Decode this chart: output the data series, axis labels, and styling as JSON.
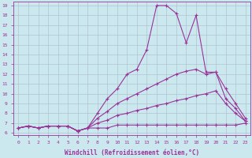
{
  "bg_color": "#cbe8ee",
  "line_color": "#993399",
  "grid_color": "#aabbcc",
  "xlabel": "Windchill (Refroidissement éolien,°C)",
  "xlim_min": -0.5,
  "xlim_max": 23.5,
  "ylim_min": 5.8,
  "ylim_max": 19.4,
  "xticks": [
    0,
    1,
    2,
    3,
    4,
    5,
    6,
    7,
    8,
    9,
    10,
    11,
    12,
    13,
    14,
    15,
    16,
    17,
    18,
    19,
    20,
    21,
    22,
    23
  ],
  "yticks": [
    6,
    7,
    8,
    9,
    10,
    11,
    12,
    13,
    14,
    15,
    16,
    17,
    18,
    19
  ],
  "lines": [
    {
      "x": [
        0,
        1,
        2,
        3,
        4,
        5,
        6,
        7,
        8,
        9,
        10,
        11,
        12,
        13,
        14,
        15,
        16,
        17,
        18,
        19,
        20,
        21,
        22,
        23
      ],
      "y": [
        6.5,
        6.7,
        6.5,
        6.7,
        6.7,
        6.7,
        6.2,
        6.5,
        6.5,
        6.5,
        6.8,
        6.8,
        6.8,
        6.8,
        6.8,
        6.8,
        6.8,
        6.8,
        6.8,
        6.8,
        6.8,
        6.8,
        6.8,
        7.0
      ]
    },
    {
      "x": [
        0,
        1,
        2,
        3,
        4,
        5,
        6,
        7,
        8,
        9,
        10,
        11,
        12,
        13,
        14,
        15,
        16,
        17,
        18,
        19,
        20,
        21,
        22,
        23
      ],
      "y": [
        6.5,
        6.7,
        6.5,
        6.7,
        6.7,
        6.7,
        6.2,
        6.5,
        7.0,
        7.3,
        7.8,
        8.0,
        8.3,
        8.5,
        8.8,
        9.0,
        9.3,
        9.5,
        9.8,
        10.0,
        10.3,
        9.0,
        8.0,
        7.2
      ]
    },
    {
      "x": [
        0,
        1,
        2,
        3,
        4,
        5,
        6,
        7,
        8,
        9,
        10,
        11,
        12,
        13,
        14,
        15,
        16,
        17,
        18,
        19,
        20,
        21,
        22,
        23
      ],
      "y": [
        6.5,
        6.7,
        6.5,
        6.7,
        6.7,
        6.7,
        6.2,
        6.5,
        7.5,
        8.2,
        9.0,
        9.5,
        10.0,
        10.5,
        11.0,
        11.5,
        12.0,
        12.3,
        12.5,
        12.0,
        12.2,
        10.5,
        9.0,
        7.5
      ]
    },
    {
      "x": [
        0,
        1,
        2,
        3,
        4,
        5,
        6,
        7,
        8,
        9,
        10,
        11,
        12,
        13,
        14,
        15,
        16,
        17,
        18,
        19,
        20,
        21,
        22,
        23
      ],
      "y": [
        6.5,
        6.7,
        6.5,
        6.7,
        6.7,
        6.7,
        6.2,
        6.5,
        8.0,
        9.5,
        10.5,
        12.0,
        12.5,
        14.5,
        19.0,
        19.0,
        18.2,
        15.2,
        18.0,
        12.2,
        12.2,
        9.5,
        8.5,
        7.2
      ]
    }
  ],
  "figsize": [
    3.2,
    2.0
  ],
  "dpi": 100
}
